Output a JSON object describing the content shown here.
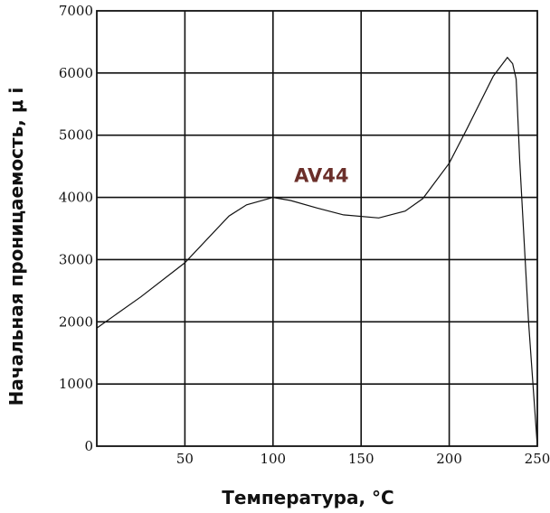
{
  "chart_data": {
    "type": "line",
    "title": "",
    "xlabel": "Температура, °С",
    "ylabel": "Начальная проницаемость, μ i",
    "xlim": [
      0,
      250
    ],
    "ylim": [
      0,
      7000
    ],
    "x_ticks": [
      50,
      100,
      150,
      200,
      250
    ],
    "x_tick_labels": [
      "50",
      "100",
      "150",
      "200",
      "250"
    ],
    "y_ticks": [
      0,
      1000,
      2000,
      3000,
      4000,
      5000,
      6000,
      7000
    ],
    "y_tick_labels": [
      "0",
      "1000",
      "2000",
      "3000",
      "4000",
      "5000",
      "6000",
      "7000"
    ],
    "grid": true,
    "colors": {
      "curve": "#111111",
      "label": "#6b2f2a"
    },
    "series": [
      {
        "name": "AV44",
        "x": [
          0,
          25,
          50,
          75,
          85,
          100,
          110,
          125,
          140,
          160,
          175,
          185,
          200,
          210,
          225,
          233,
          236,
          238,
          240,
          245,
          250
        ],
        "y": [
          1900,
          2400,
          2950,
          3700,
          3880,
          4000,
          3950,
          3830,
          3720,
          3670,
          3780,
          3980,
          4550,
          5100,
          5950,
          6250,
          6150,
          5900,
          4600,
          2000,
          0
        ]
      }
    ],
    "annotations": [
      {
        "text": "AV44",
        "x": 112,
        "y": 4250
      }
    ]
  }
}
